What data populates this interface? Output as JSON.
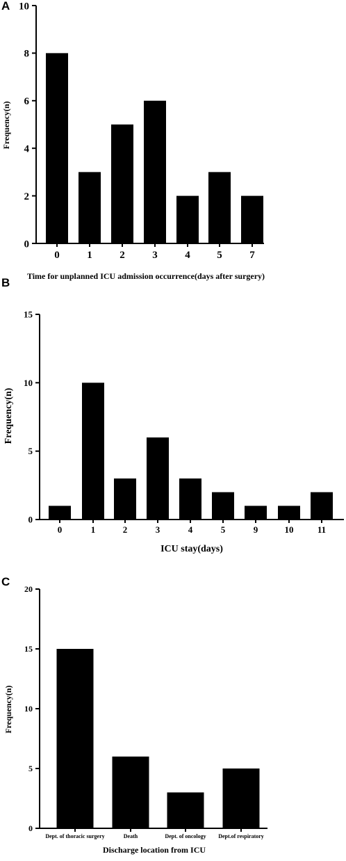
{
  "chart_data": [
    {
      "panel": "A",
      "type": "bar",
      "categories": [
        "0",
        "1",
        "2",
        "3",
        "4",
        "5",
        "7"
      ],
      "values": [
        8,
        3,
        5,
        6,
        2,
        3,
        2
      ],
      "xlabel": "Time for unplanned ICU admission occurrence(days after surgery)",
      "ylabel": "Frequency(n)",
      "ylim": [
        0,
        10
      ],
      "yticks": [
        "0",
        "2",
        "4",
        "6",
        "8",
        "10"
      ],
      "bar_color": "#000000",
      "grid": false
    },
    {
      "panel": "B",
      "type": "bar",
      "categories": [
        "0",
        "1",
        "2",
        "3",
        "4",
        "5",
        "9",
        "10",
        "11"
      ],
      "values": [
        1,
        10,
        3,
        6,
        3,
        2,
        1,
        1,
        2
      ],
      "xlabel": "ICU stay(days)",
      "ylabel": "Frequency(n)",
      "ylim": [
        0,
        15
      ],
      "yticks": [
        "0",
        "5",
        "10",
        "15"
      ],
      "bar_color": "#000000",
      "grid": false
    },
    {
      "panel": "C",
      "type": "bar",
      "categories": [
        "Dept. of thoracic surgery",
        "Death",
        "Dept. of oncology",
        "Dept.of respiratory"
      ],
      "values": [
        15,
        6,
        3,
        5
      ],
      "xlabel": "Discharge location from ICU",
      "ylabel": "Frequency(n)",
      "ylim": [
        0,
        20
      ],
      "yticks": [
        "0",
        "5",
        "10",
        "15",
        "20"
      ],
      "bar_color": "#000000",
      "grid": false
    }
  ]
}
